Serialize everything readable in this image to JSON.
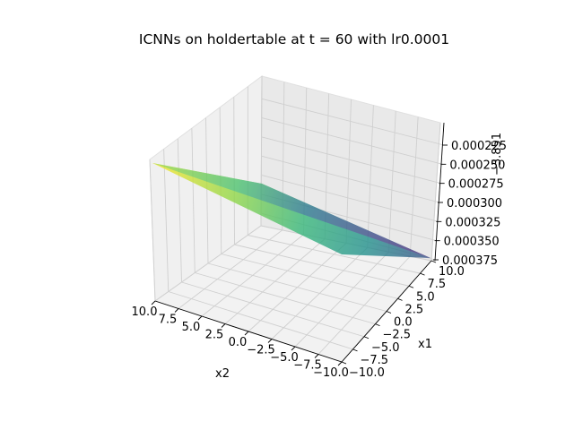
{
  "chart_data": {
    "type": "surface",
    "title": "ICNNs on holdertable at t = 60 with lr0.0001",
    "xlabel": "x1",
    "ylabel": "x2",
    "zlabel": "",
    "z_offset_label": "−3.851",
    "colormap": "viridis",
    "x1_ticks": [
      "−10.0",
      "−7.5",
      "−5.0",
      "−2.5",
      "0.0",
      "2.5",
      "5.0",
      "7.5",
      "10.0"
    ],
    "x2_ticks": [
      "10.0",
      "7.5",
      "5.0",
      "2.5",
      "0.0",
      "−2.5",
      "−5.0",
      "−7.5",
      "−10.0"
    ],
    "z_ticks": [
      "0.000225",
      "0.000250",
      "0.000275",
      "0.000300",
      "0.000325",
      "0.000350",
      "0.000375"
    ],
    "x1_range": [
      -10,
      10
    ],
    "x2_range": [
      -10,
      10
    ],
    "surface_corners": [
      {
        "x1": -10,
        "x2": 10,
        "z": -0.00022
      },
      {
        "x1": 10,
        "x2": 10,
        "z": -0.00038
      },
      {
        "x1": -10,
        "x2": -10,
        "z": -0.00029
      },
      {
        "x1": 10,
        "x2": -10,
        "z": -0.00037
      }
    ]
  }
}
